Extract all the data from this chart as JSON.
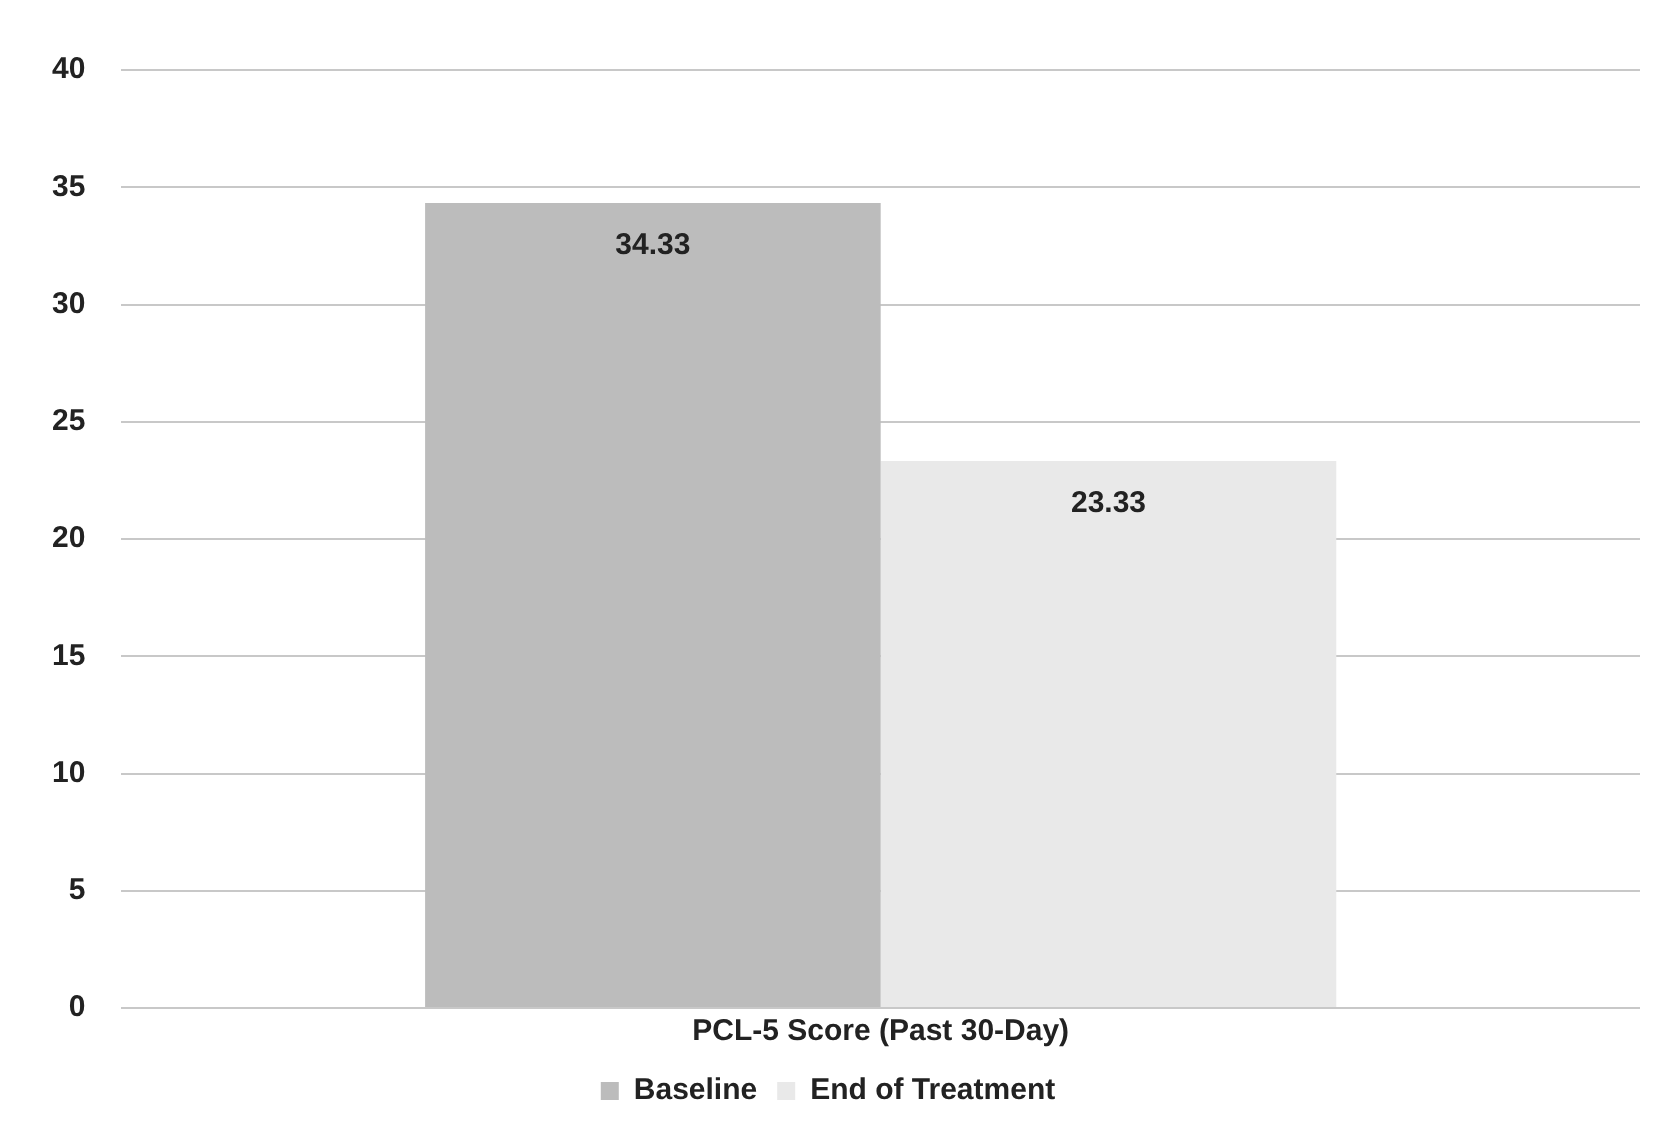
{
  "chart_data": {
    "type": "bar",
    "categories": [
      "PCL-5 Score (Past 30-Day)"
    ],
    "series": [
      {
        "name": "Baseline",
        "color": "#bcbcbc",
        "values": [
          34.33
        ]
      },
      {
        "name": "End of Treatment",
        "color": "#e9e9e9",
        "values": [
          23.33
        ]
      }
    ],
    "ylim": [
      0,
      40
    ],
    "yticks": [
      0,
      5,
      10,
      15,
      20,
      25,
      30,
      35,
      40
    ],
    "grid": "y",
    "legend": "bottom",
    "data_labels": true
  }
}
